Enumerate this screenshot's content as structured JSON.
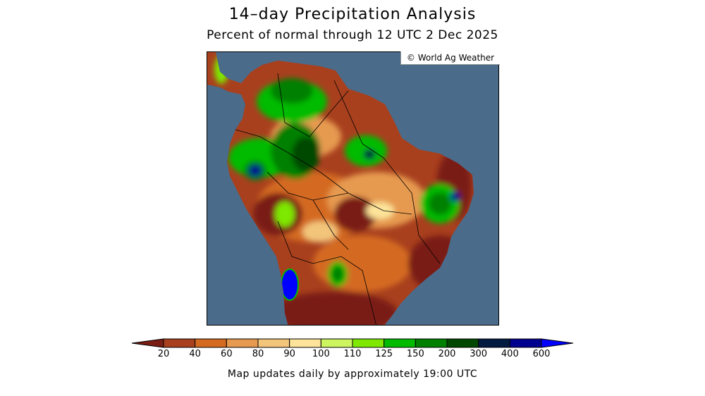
{
  "header": {
    "title": "14–day Precipitation Analysis",
    "subtitle": "Percent of normal through 12 UTC 2 Dec 2025"
  },
  "map": {
    "credit": "© World Ag Weather",
    "ocean_color": "#4a6b8a"
  },
  "legend": {
    "labels": [
      "20",
      "40",
      "60",
      "80",
      "90",
      "100",
      "110",
      "125",
      "150",
      "200",
      "300",
      "400",
      "600"
    ],
    "colors": [
      "#7a1e14",
      "#a8401e",
      "#d46a20",
      "#e69a50",
      "#f2c57a",
      "#fde49a",
      "#ccf560",
      "#7ee800",
      "#00bb00",
      "#008000",
      "#004800",
      "#001a40",
      "#00008f",
      "#0000ff"
    ]
  },
  "footer": {
    "note": "Map updates daily by approximately 19:00 UTC"
  }
}
